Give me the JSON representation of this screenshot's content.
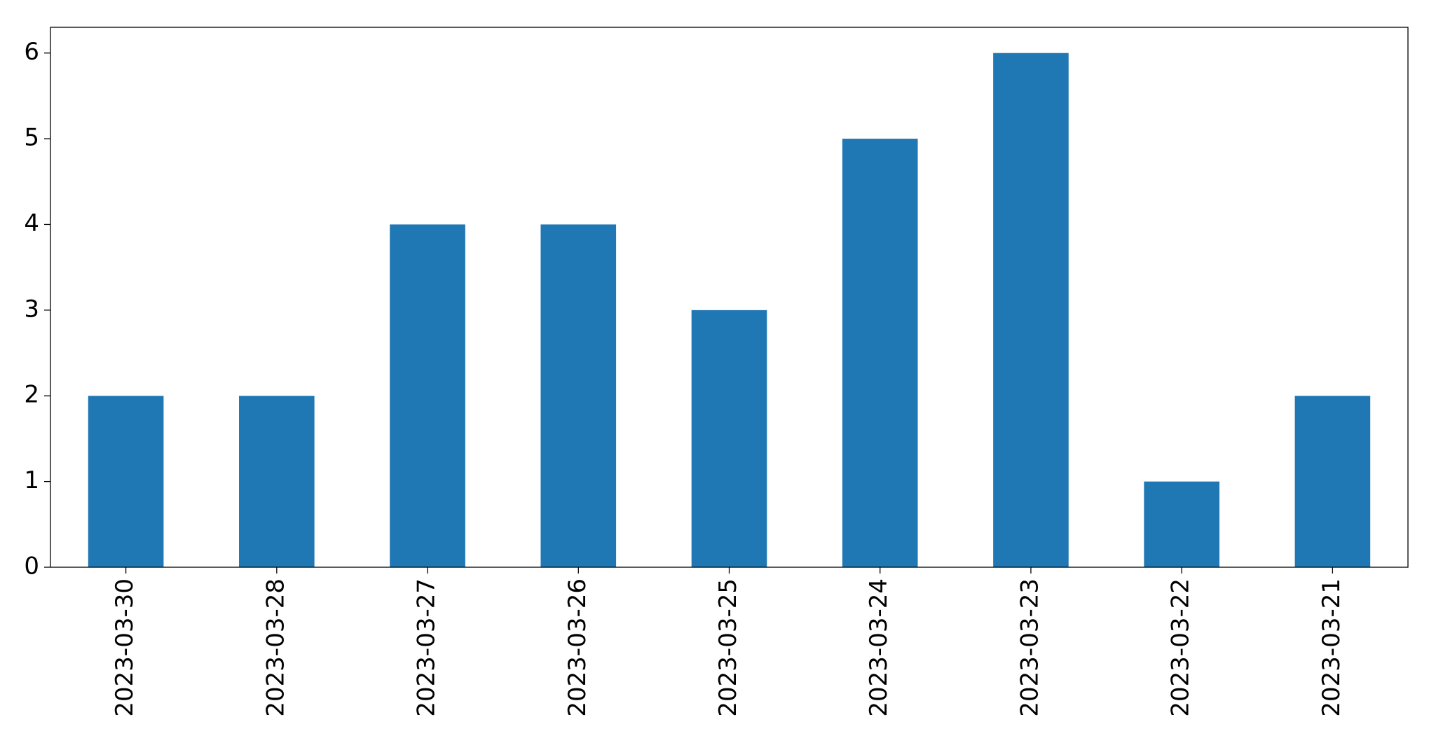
{
  "chart_data": {
    "type": "bar",
    "categories": [
      "2023-03-30",
      "2023-03-28",
      "2023-03-27",
      "2023-03-26",
      "2023-03-25",
      "2023-03-24",
      "2023-03-23",
      "2023-03-22",
      "2023-03-21"
    ],
    "values": [
      2,
      2,
      4,
      4,
      3,
      5,
      6,
      1,
      2
    ],
    "color": "#1f77b4",
    "ylim": [
      0,
      6.3
    ],
    "yticks": [
      0,
      1,
      2,
      3,
      4,
      5,
      6
    ],
    "grid": false
  }
}
